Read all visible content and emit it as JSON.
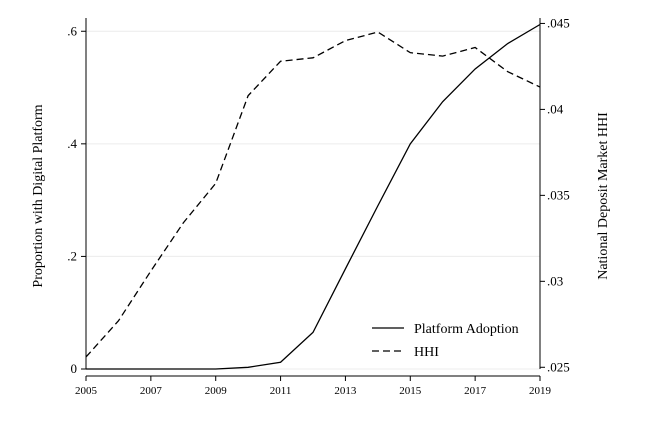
{
  "chart_data": {
    "type": "line",
    "title": "",
    "xlabel": "",
    "ylabel_left": "Proportion with Digital Platform",
    "ylabel_right": "National Deposit Market HHI",
    "x": [
      2005,
      2006,
      2007,
      2008,
      2009,
      2010,
      2011,
      2012,
      2013,
      2014,
      2015,
      2016,
      2017,
      2018,
      2019
    ],
    "xlim": [
      2005,
      2019
    ],
    "x_ticks": [
      "2005",
      "2007",
      "2009",
      "2011",
      "2013",
      "2015",
      "2017",
      "2019"
    ],
    "ylim_left": [
      0,
      0.62
    ],
    "y_ticks_left": [
      {
        "value": 0,
        "label": "0"
      },
      {
        "value": 0.2,
        "label": ".2"
      },
      {
        "value": 0.4,
        "label": ".4"
      },
      {
        "value": 0.6,
        "label": ".6"
      }
    ],
    "ylim_right": [
      0.0249,
      0.0452
    ],
    "y_ticks_right": [
      {
        "value": 0.025,
        "label": ".025"
      },
      {
        "value": 0.03,
        "label": ".03"
      },
      {
        "value": 0.035,
        "label": ".035"
      },
      {
        "value": 0.04,
        "label": ".04"
      },
      {
        "value": 0.045,
        "label": ".045"
      }
    ],
    "grid": true,
    "legend_position": "bottom-right",
    "series": [
      {
        "name": "Platform Adoption",
        "axis": "left",
        "style": "solid",
        "values": [
          0.0,
          0.0,
          0.0,
          0.0,
          0.0,
          0.003,
          0.012,
          0.065,
          0.178,
          0.29,
          0.4,
          0.475,
          0.533,
          0.578,
          0.612
        ]
      },
      {
        "name": "HHI",
        "axis": "right",
        "style": "dashed",
        "values": [
          0.0256,
          0.0277,
          0.0306,
          0.0334,
          0.0357,
          0.0408,
          0.0428,
          0.043,
          0.044,
          0.0445,
          0.0433,
          0.0431,
          0.0436,
          0.0422,
          0.0413
        ]
      }
    ],
    "colors": {
      "line": "#000000",
      "grid": "#ececec"
    }
  }
}
